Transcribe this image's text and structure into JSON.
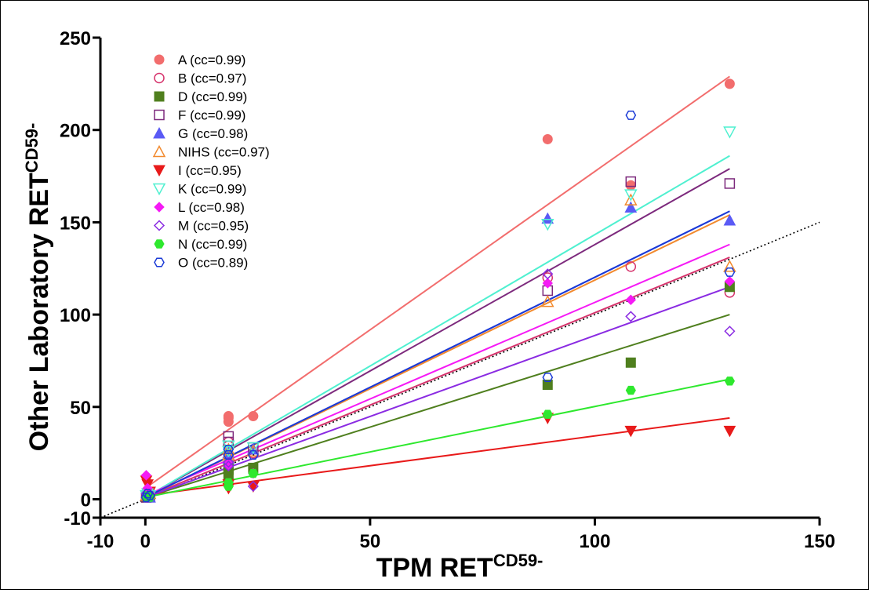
{
  "chart_data": {
    "type": "scatter",
    "xlabel": "TPM RET",
    "xlabel_sup": "CD59-",
    "ylabel": "Other Laboratory RET",
    "ylabel_sup": "CD59-",
    "xlim": [
      -10,
      150
    ],
    "ylim": [
      -10,
      250
    ],
    "xticks": [
      -10,
      0,
      50,
      100,
      150
    ],
    "yticks": [
      -10,
      0,
      50,
      100,
      150,
      200,
      250
    ],
    "xtick_labels": [
      "-10",
      "0",
      "50",
      "100",
      "150"
    ],
    "ytick_labels": [
      "-10",
      "0",
      "50",
      "100",
      "150",
      "200",
      "250"
    ],
    "legend_position": "top-left",
    "identity_line": {
      "style": "dotted",
      "color": "#000000",
      "x": [
        -10,
        150
      ],
      "y": [
        -10,
        150
      ]
    },
    "series": [
      {
        "name": "A (cc=0.99)",
        "marker": "circle-filled",
        "color": "#f26d6d",
        "points": [
          [
            0.2,
            1
          ],
          [
            0.5,
            3
          ],
          [
            0.7,
            2
          ],
          [
            1,
            4
          ],
          [
            18.5,
            42
          ],
          [
            18.5,
            44
          ],
          [
            18.5,
            45
          ],
          [
            24,
            45
          ],
          [
            89.5,
            195
          ],
          [
            108,
            170
          ],
          [
            130,
            225
          ]
        ],
        "fit": [
          [
            0,
            6
          ],
          [
            130,
            229
          ]
        ]
      },
      {
        "name": "B (cc=0.97)",
        "marker": "circle-open",
        "color": "#d6336c",
        "points": [
          [
            0.2,
            1
          ],
          [
            0.5,
            2
          ],
          [
            1,
            3
          ],
          [
            18.5,
            29
          ],
          [
            18.5,
            31
          ],
          [
            24,
            25
          ],
          [
            89.5,
            120
          ],
          [
            108,
            126
          ],
          [
            130,
            112
          ]
        ],
        "fit": [
          [
            0,
            1
          ],
          [
            130,
            131
          ]
        ]
      },
      {
        "name": "D (cc=0.99)",
        "marker": "square-filled",
        "color": "#4f7f1e",
        "points": [
          [
            0.2,
            1
          ],
          [
            0.5,
            2
          ],
          [
            1,
            1
          ],
          [
            18.5,
            13
          ],
          [
            18.5,
            16
          ],
          [
            18.5,
            18
          ],
          [
            24,
            17
          ],
          [
            89.5,
            62
          ],
          [
            108,
            74
          ],
          [
            130,
            115
          ]
        ],
        "fit": [
          [
            0,
            1
          ],
          [
            130,
            100
          ]
        ]
      },
      {
        "name": "F (cc=0.99)",
        "marker": "square-open",
        "color": "#7d2a7d",
        "points": [
          [
            0.2,
            1
          ],
          [
            0.5,
            3
          ],
          [
            1,
            2
          ],
          [
            18.5,
            31
          ],
          [
            18.5,
            34
          ],
          [
            24,
            28
          ],
          [
            89.5,
            113
          ],
          [
            108,
            172
          ],
          [
            130,
            171
          ]
        ],
        "fit": [
          [
            0,
            1
          ],
          [
            130,
            179
          ]
        ]
      },
      {
        "name": "G (cc=0.98)",
        "marker": "triangle-up-filled",
        "color": "#5a5af5",
        "points": [
          [
            0.2,
            2
          ],
          [
            0.5,
            3
          ],
          [
            1,
            1
          ],
          [
            18.5,
            22
          ],
          [
            18.5,
            25
          ],
          [
            24,
            27
          ],
          [
            89.5,
            152
          ],
          [
            108,
            158
          ],
          [
            130,
            151
          ]
        ],
        "fit": [
          [
            0,
            1
          ],
          [
            130,
            156
          ]
        ]
      },
      {
        "name": "NIHS (cc=0.97)",
        "marker": "triangle-up-open",
        "color": "#f28a2e",
        "points": [
          [
            0.2,
            2
          ],
          [
            0.5,
            4
          ],
          [
            1,
            3
          ],
          [
            18.5,
            27
          ],
          [
            18.5,
            24
          ],
          [
            24,
            26
          ],
          [
            89.5,
            107
          ],
          [
            108,
            162
          ],
          [
            130,
            126
          ]
        ],
        "fit": [
          [
            0,
            1
          ],
          [
            130,
            154
          ]
        ]
      },
      {
        "name": "I (cc=0.95)",
        "marker": "triangle-down-filled",
        "color": "#e81a1a",
        "points": [
          [
            0.2,
            10
          ],
          [
            0.5,
            8
          ],
          [
            1,
            4
          ],
          [
            18.5,
            6
          ],
          [
            18.5,
            8
          ],
          [
            24,
            7
          ],
          [
            89.5,
            44
          ],
          [
            108,
            37
          ],
          [
            130,
            37
          ]
        ],
        "fit": [
          [
            0,
            2
          ],
          [
            130,
            44
          ]
        ]
      },
      {
        "name": "K (cc=0.99)",
        "marker": "triangle-down-open",
        "color": "#4ff0d0",
        "points": [
          [
            0.2,
            2
          ],
          [
            0.5,
            3
          ],
          [
            1,
            2
          ],
          [
            18.5,
            26
          ],
          [
            18.5,
            29
          ],
          [
            24,
            28
          ],
          [
            89.5,
            149
          ],
          [
            108,
            165
          ],
          [
            130,
            199
          ]
        ],
        "fit": [
          [
            0,
            1
          ],
          [
            130,
            186
          ]
        ]
      },
      {
        "name": "L (cc=0.98)",
        "marker": "diamond-filled",
        "color": "#f51af5",
        "points": [
          [
            0.2,
            13
          ],
          [
            0.5,
            6
          ],
          [
            1,
            3
          ],
          [
            18.5,
            20
          ],
          [
            18.5,
            18
          ],
          [
            24,
            14
          ],
          [
            89.5,
            117
          ],
          [
            108,
            108
          ],
          [
            130,
            118
          ]
        ],
        "fit": [
          [
            0,
            2
          ],
          [
            130,
            138
          ]
        ]
      },
      {
        "name": "M (cc=0.95)",
        "marker": "diamond-open",
        "color": "#8a2be2",
        "points": [
          [
            0.2,
            3
          ],
          [
            0.5,
            1
          ],
          [
            1,
            2
          ],
          [
            18.5,
            18
          ],
          [
            18.5,
            20
          ],
          [
            24,
            7
          ],
          [
            89.5,
            122
          ],
          [
            108,
            99
          ],
          [
            130,
            91
          ]
        ],
        "fit": [
          [
            0,
            1
          ],
          [
            130,
            115
          ]
        ]
      },
      {
        "name": "N (cc=0.99)",
        "marker": "hexagon-filled",
        "color": "#2ee82e",
        "points": [
          [
            0.2,
            1
          ],
          [
            0.5,
            2
          ],
          [
            1,
            1
          ],
          [
            18.5,
            7
          ],
          [
            18.5,
            9
          ],
          [
            24,
            14
          ],
          [
            89.5,
            46
          ],
          [
            108,
            59
          ],
          [
            130,
            64
          ]
        ],
        "fit": [
          [
            0,
            1
          ],
          [
            130,
            65
          ]
        ]
      },
      {
        "name": "O (cc=0.89)",
        "marker": "hexagon-open",
        "color": "#1a3ad6",
        "points": [
          [
            0.2,
            1
          ],
          [
            0.5,
            3
          ],
          [
            1,
            2
          ],
          [
            18.5,
            27
          ],
          [
            18.5,
            24
          ],
          [
            24,
            24
          ],
          [
            89.5,
            66
          ],
          [
            108,
            208
          ],
          [
            130,
            123
          ]
        ],
        "fit": [
          [
            0,
            1
          ],
          [
            130,
            156
          ]
        ]
      }
    ]
  }
}
